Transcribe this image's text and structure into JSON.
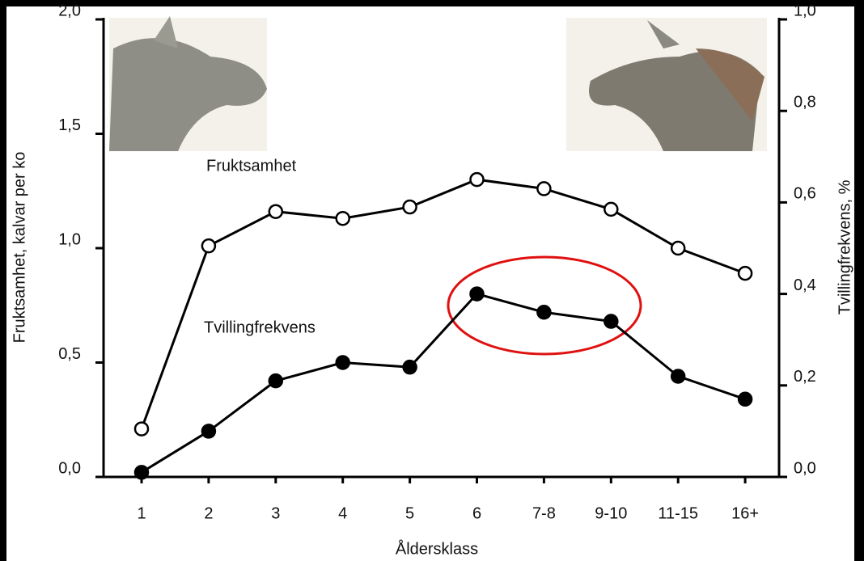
{
  "chart_data": {
    "type": "line",
    "categories": [
      "1",
      "2",
      "3",
      "4",
      "5",
      "6",
      "7-8",
      "9-10",
      "11-15",
      "16+"
    ],
    "series": [
      {
        "name": "Fruktsamhet",
        "color": "#000000",
        "marker_fill": "#ffffff",
        "axis": "y",
        "values": [
          0.21,
          1.01,
          1.16,
          1.13,
          1.18,
          1.3,
          1.26,
          1.17,
          1.0,
          0.89
        ]
      },
      {
        "name": "Tvillingfrekvens",
        "color": "#000000",
        "marker_fill": "#000000",
        "axis": "y2",
        "values": [
          0.01,
          0.1,
          0.21,
          0.25,
          0.24,
          0.4,
          0.36,
          0.34,
          0.22,
          0.17
        ]
      }
    ],
    "xlabel": "Åldersklass",
    "ylabel": "Fruktsamhet, kalvar per ko",
    "y2label": "Tvillingfrekvens, %",
    "ylim": [
      0,
      2
    ],
    "yticks": [
      {
        "value": 0,
        "label": "0,0"
      },
      {
        "value": 0.5,
        "label": "0,5"
      },
      {
        "value": 1,
        "label": "1,0"
      },
      {
        "value": 1.5,
        "label": "1,5"
      },
      {
        "value": 2,
        "label": "2,0"
      }
    ],
    "y2lim": [
      0,
      1
    ],
    "y2ticks": [
      {
        "value": 0,
        "label": "0,0"
      },
      {
        "value": 0.2,
        "label": "0,2"
      },
      {
        "value": 0.4,
        "label": "0,4"
      },
      {
        "value": 0.6,
        "label": "0,6"
      },
      {
        "value": 0.8,
        "label": "0,8"
      },
      {
        "value": 1,
        "label": "1,0"
      }
    ],
    "grid": false
  }
}
